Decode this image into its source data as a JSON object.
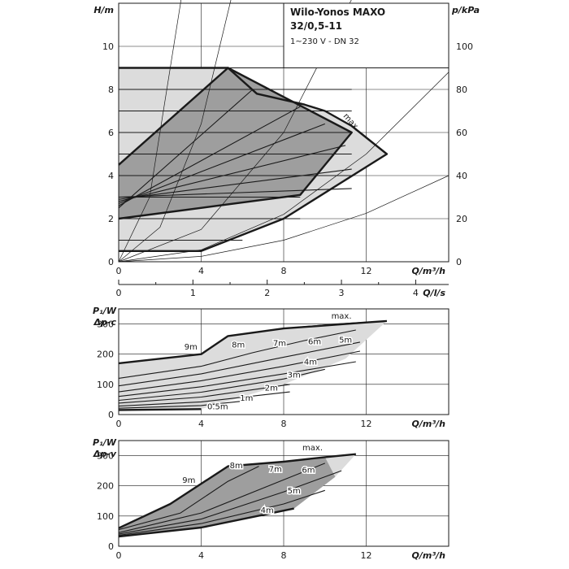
{
  "colors": {
    "dark": "#9e9e9e",
    "light": "#dcdcdc",
    "line": "#1a1a1a",
    "grid": "#1a1a1a",
    "bg": "#ffffff"
  },
  "panel_top": {
    "title_line1": "Wilo-Yonos MAXO",
    "title_line2": "32/0,5-11",
    "subtitle": "1~230 V - DN 32",
    "ylabel_left": "H/m",
    "ylabel_right": "p/kPa",
    "xlabel": "Q/m³/h",
    "xlabel_top_secondary": "Q/l/s",
    "xticks": [
      "0",
      "4",
      "8",
      "12"
    ],
    "yticks_left": [
      "0",
      "2",
      "4",
      "6",
      "8",
      "10"
    ],
    "yticks_right": [
      "0",
      "20",
      "40",
      "60",
      "80",
      "100"
    ],
    "secondary_x_ticks": [
      "0",
      "1",
      "2",
      "3",
      "4"
    ],
    "curve_label_max": "max."
  },
  "panel_mid": {
    "ylabel_line1": "P₁/W",
    "ylabel_line2": "Δp-c",
    "xlabel": "Q/m³/h",
    "xticks": [
      "0",
      "4",
      "8",
      "12"
    ],
    "yticks": [
      "0",
      "100",
      "200",
      "300"
    ],
    "curve_labels": [
      "max.",
      "9m",
      "8m",
      "7m",
      "6m",
      "5m",
      "4m",
      "3m",
      "2m",
      "1m",
      "0.5m"
    ]
  },
  "panel_bot": {
    "ylabel_line1": "P₁/W",
    "ylabel_line2": "Δp-v",
    "xlabel": "Q/m³/h",
    "xticks": [
      "0",
      "4",
      "8",
      "12"
    ],
    "yticks": [
      "0",
      "100",
      "200",
      "300"
    ],
    "curve_labels": [
      "max.",
      "9m",
      "8m",
      "7m",
      "6m",
      "5m",
      "4m"
    ]
  },
  "chart_data": [
    {
      "type": "line",
      "title": "Wilo-Yonos MAXO 32/0,5-11",
      "subtitle": "1~230 V - DN 32",
      "xlabel": "Q/m³/h",
      "ylabel": "H/m",
      "y2label": "p/kPa",
      "xlim": [
        0,
        16
      ],
      "ylim": [
        0,
        12
      ],
      "y2lim": [
        0,
        120
      ],
      "secondary_x": {
        "label": "Q/l/s",
        "ticks": [
          0,
          1,
          2,
          3,
          4
        ]
      },
      "grid": true,
      "series": [
        {
          "name": "max.",
          "x": [
            0,
            5.3,
            6.7,
            9.0,
            10.0,
            11.3,
            13.0,
            8.0,
            4.0,
            0
          ],
          "y": [
            9,
            9,
            7.8,
            7.3,
            7.0,
            6.3,
            5.0,
            2.0,
            0.5,
            0.5
          ]
        },
        {
          "x": [
            0,
            5.3,
            11.3,
            8.8,
            0
          ],
          "y": [
            4.5,
            9,
            6.0,
            3.1,
            2.0
          ]
        },
        {
          "x": [
            0,
            11.3
          ],
          "y": [
            9,
            9
          ]
        },
        {
          "x": [
            0,
            11.3
          ],
          "y": [
            8,
            8
          ]
        },
        {
          "x": [
            0,
            11.3
          ],
          "y": [
            7,
            7
          ]
        },
        {
          "x": [
            0,
            11.3
          ],
          "y": [
            6,
            6
          ]
        },
        {
          "x": [
            0,
            11.3
          ],
          "y": [
            5,
            5
          ]
        },
        {
          "x": [
            0,
            11.3
          ],
          "y": [
            4,
            4
          ]
        },
        {
          "x": [
            0,
            8.8
          ],
          "y": [
            3,
            3
          ]
        },
        {
          "x": [
            0,
            8.8
          ],
          "y": [
            2,
            2
          ]
        },
        {
          "x": [
            0,
            6.0
          ],
          "y": [
            1,
            1
          ]
        },
        {
          "x": [
            0,
            4.0
          ],
          "y": [
            0.5,
            0.5
          ]
        },
        {
          "x": [
            0,
            6.5
          ],
          "y": [
            2.5,
            8.0
          ]
        },
        {
          "x": [
            0,
            8.8
          ],
          "y": [
            2.6,
            7.2
          ]
        },
        {
          "x": [
            0,
            10.0
          ],
          "y": [
            2.7,
            6.4
          ]
        },
        {
          "x": [
            0,
            11.0
          ],
          "y": [
            2.8,
            5.4
          ]
        },
        {
          "x": [
            0,
            11.3
          ],
          "y": [
            2.9,
            4.3
          ]
        },
        {
          "x": [
            0,
            11.3
          ],
          "y": [
            3.0,
            3.4
          ]
        },
        {
          "name": "system curve",
          "x": [
            0,
            4,
            8,
            12,
            16
          ],
          "y": [
            0,
            0.25,
            1.0,
            2.25,
            4.0
          ]
        },
        {
          "name": "system curve",
          "x": [
            0,
            4,
            8,
            12,
            16
          ],
          "y": [
            0,
            0.55,
            2.2,
            5.0,
            8.8
          ]
        },
        {
          "name": "system curve",
          "x": [
            0,
            4,
            8,
            12,
            16
          ],
          "y": [
            0,
            1.5,
            6.0,
            13.5,
            24
          ]
        },
        {
          "name": "system curve",
          "x": [
            0,
            2,
            4,
            6,
            8
          ],
          "y": [
            0,
            1.6,
            6.4,
            14.4,
            25.6
          ]
        },
        {
          "name": "system curve",
          "x": [
            0,
            1.5,
            3,
            4.5
          ],
          "y": [
            0,
            3.0,
            12.0,
            27.0
          ]
        }
      ]
    },
    {
      "type": "line",
      "ylabel": "P₁/W Δp-c",
      "xlabel": "Q/m³/h",
      "xlim": [
        0,
        16
      ],
      "ylim": [
        0,
        350
      ],
      "grid": true,
      "series": [
        {
          "name": "max.",
          "x": [
            0,
            4,
            5.3,
            8,
            10,
            12,
            13
          ],
          "y": [
            170,
            200,
            260,
            285,
            295,
            305,
            310
          ]
        },
        {
          "name": "9m",
          "x": [
            0,
            4,
            5.3,
            8,
            10.5,
            13
          ],
          "y": [
            170,
            200,
            260,
            285,
            300,
            310
          ]
        },
        {
          "name": "8m",
          "x": [
            0,
            4,
            6.5,
            9,
            11.5
          ],
          "y": [
            120,
            160,
            205,
            245,
            280
          ]
        },
        {
          "name": "7m",
          "x": [
            0,
            4,
            8,
            11.7
          ],
          "y": [
            95,
            135,
            190,
            240
          ]
        },
        {
          "name": "6m",
          "x": [
            0,
            4,
            8,
            11.7
          ],
          "y": [
            75,
            112,
            160,
            210
          ]
        },
        {
          "name": "5m",
          "x": [
            0,
            4,
            8,
            11.5
          ],
          "y": [
            60,
            92,
            135,
            175
          ]
        },
        {
          "name": "4m",
          "x": [
            0,
            4,
            8,
            10.0
          ],
          "y": [
            47,
            74,
            118,
            150
          ]
        },
        {
          "name": "3m",
          "x": [
            0,
            4,
            8.3
          ],
          "y": [
            38,
            58,
            100
          ]
        },
        {
          "name": "2m",
          "x": [
            0,
            4,
            8.3
          ],
          "y": [
            28,
            42,
            75
          ]
        },
        {
          "name": "1m",
          "x": [
            0,
            4,
            6.5
          ],
          "y": [
            21,
            30,
            48
          ]
        },
        {
          "name": "0.5m",
          "x": [
            0,
            4.0
          ],
          "y": [
            15,
            18
          ]
        }
      ]
    },
    {
      "type": "line",
      "ylabel": "P₁/W Δp-v",
      "xlabel": "Q/m³/h",
      "xlim": [
        0,
        16
      ],
      "ylim": [
        0,
        350
      ],
      "grid": true,
      "series": [
        {
          "name": "max.",
          "x": [
            0,
            2.5,
            5.3,
            8,
            10,
            11.5
          ],
          "y": [
            60,
            140,
            265,
            280,
            295,
            305
          ]
        },
        {
          "name": "9m",
          "x": [
            0,
            2.5,
            5.3,
            8,
            11.5
          ],
          "y": [
            60,
            140,
            265,
            280,
            305
          ]
        },
        {
          "name": "8m",
          "x": [
            0,
            3.0,
            5.3,
            6.8
          ],
          "y": [
            55,
            110,
            215,
            265
          ]
        },
        {
          "name": "7m",
          "x": [
            0,
            4.0,
            8.0,
            10.0
          ],
          "y": [
            45,
            110,
            220,
            275
          ]
        },
        {
          "name": "6m",
          "x": [
            0,
            4.0,
            8.0,
            10.8
          ],
          "y": [
            40,
            90,
            180,
            250
          ]
        },
        {
          "name": "5m",
          "x": [
            0,
            4.0,
            8.0,
            10.0
          ],
          "y": [
            36,
            75,
            140,
            185
          ]
        },
        {
          "name": "4m",
          "x": [
            0,
            4.0,
            8.5
          ],
          "y": [
            32,
            62,
            125
          ]
        }
      ]
    }
  ]
}
